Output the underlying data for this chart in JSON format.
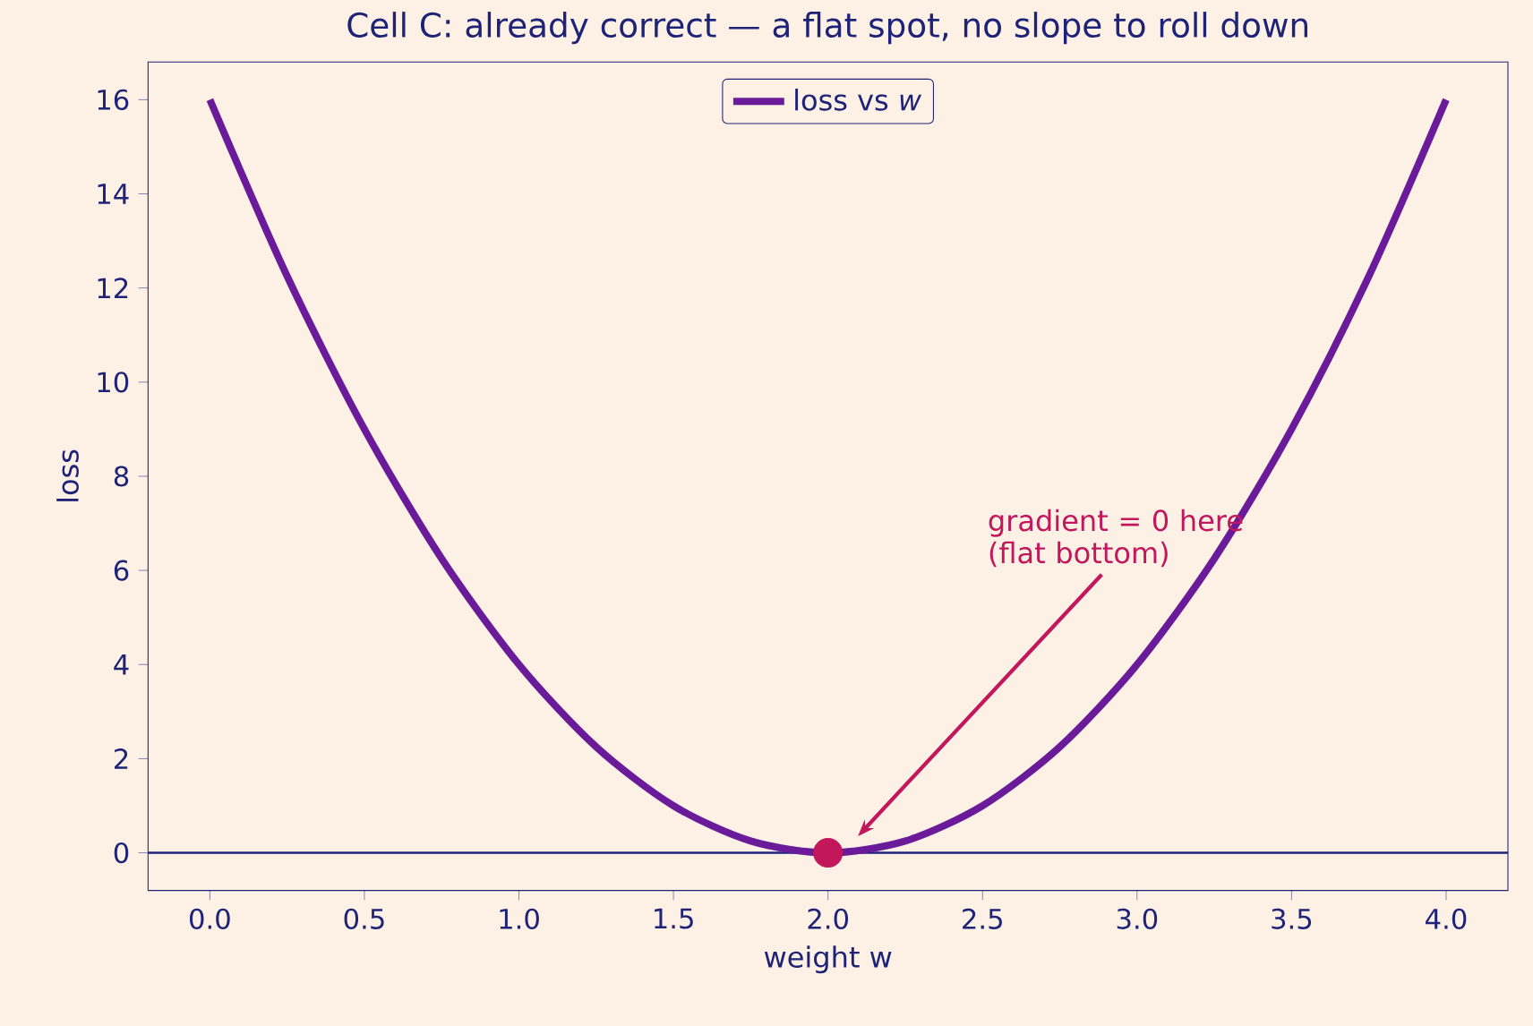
{
  "chart_data": {
    "type": "line",
    "title": "Cell C: already correct — a flat spot, no slope to roll down",
    "xlabel": "weight w",
    "ylabel": "loss",
    "xlim": [
      -0.2,
      4.2
    ],
    "ylim": [
      -0.8,
      16.8
    ],
    "xticks": [
      {
        "value": 0,
        "label": "0.0"
      },
      {
        "value": 0.5,
        "label": "0.5"
      },
      {
        "value": 1,
        "label": "1.0"
      },
      {
        "value": 1.5,
        "label": "1.5"
      },
      {
        "value": 2,
        "label": "2.0"
      },
      {
        "value": 2.5,
        "label": "2.5"
      },
      {
        "value": 3,
        "label": "3.0"
      },
      {
        "value": 3.5,
        "label": "3.5"
      },
      {
        "value": 4,
        "label": "4.0"
      }
    ],
    "yticks": [
      0,
      2,
      4,
      6,
      8,
      10,
      12,
      14,
      16
    ],
    "legend": "top",
    "series": [
      {
        "name": "loss vs *w*",
        "color": "#6a1b9a",
        "marker": "none",
        "x": [
          0,
          0.25,
          0.5,
          0.75,
          1,
          1.25,
          1.5,
          1.75,
          2,
          2.25,
          2.5,
          2.75,
          3,
          3.25,
          3.5,
          3.75,
          4
        ],
        "values": [
          16,
          12.25,
          9,
          6.25,
          4,
          2.25,
          1,
          0.25,
          0,
          0.25,
          1,
          2.25,
          4,
          6.25,
          9,
          12.25,
          16
        ]
      },
      {
        "type": "scatter",
        "color": "#c2185b",
        "marker": "circle",
        "x": [
          2
        ],
        "values": [
          0
        ]
      }
    ],
    "ref_lines": [
      {
        "axis": "y",
        "value": 0,
        "color": "#1a237e"
      }
    ],
    "annotations": [
      "gradient = 0 here (flat bottom)"
    ]
  }
}
